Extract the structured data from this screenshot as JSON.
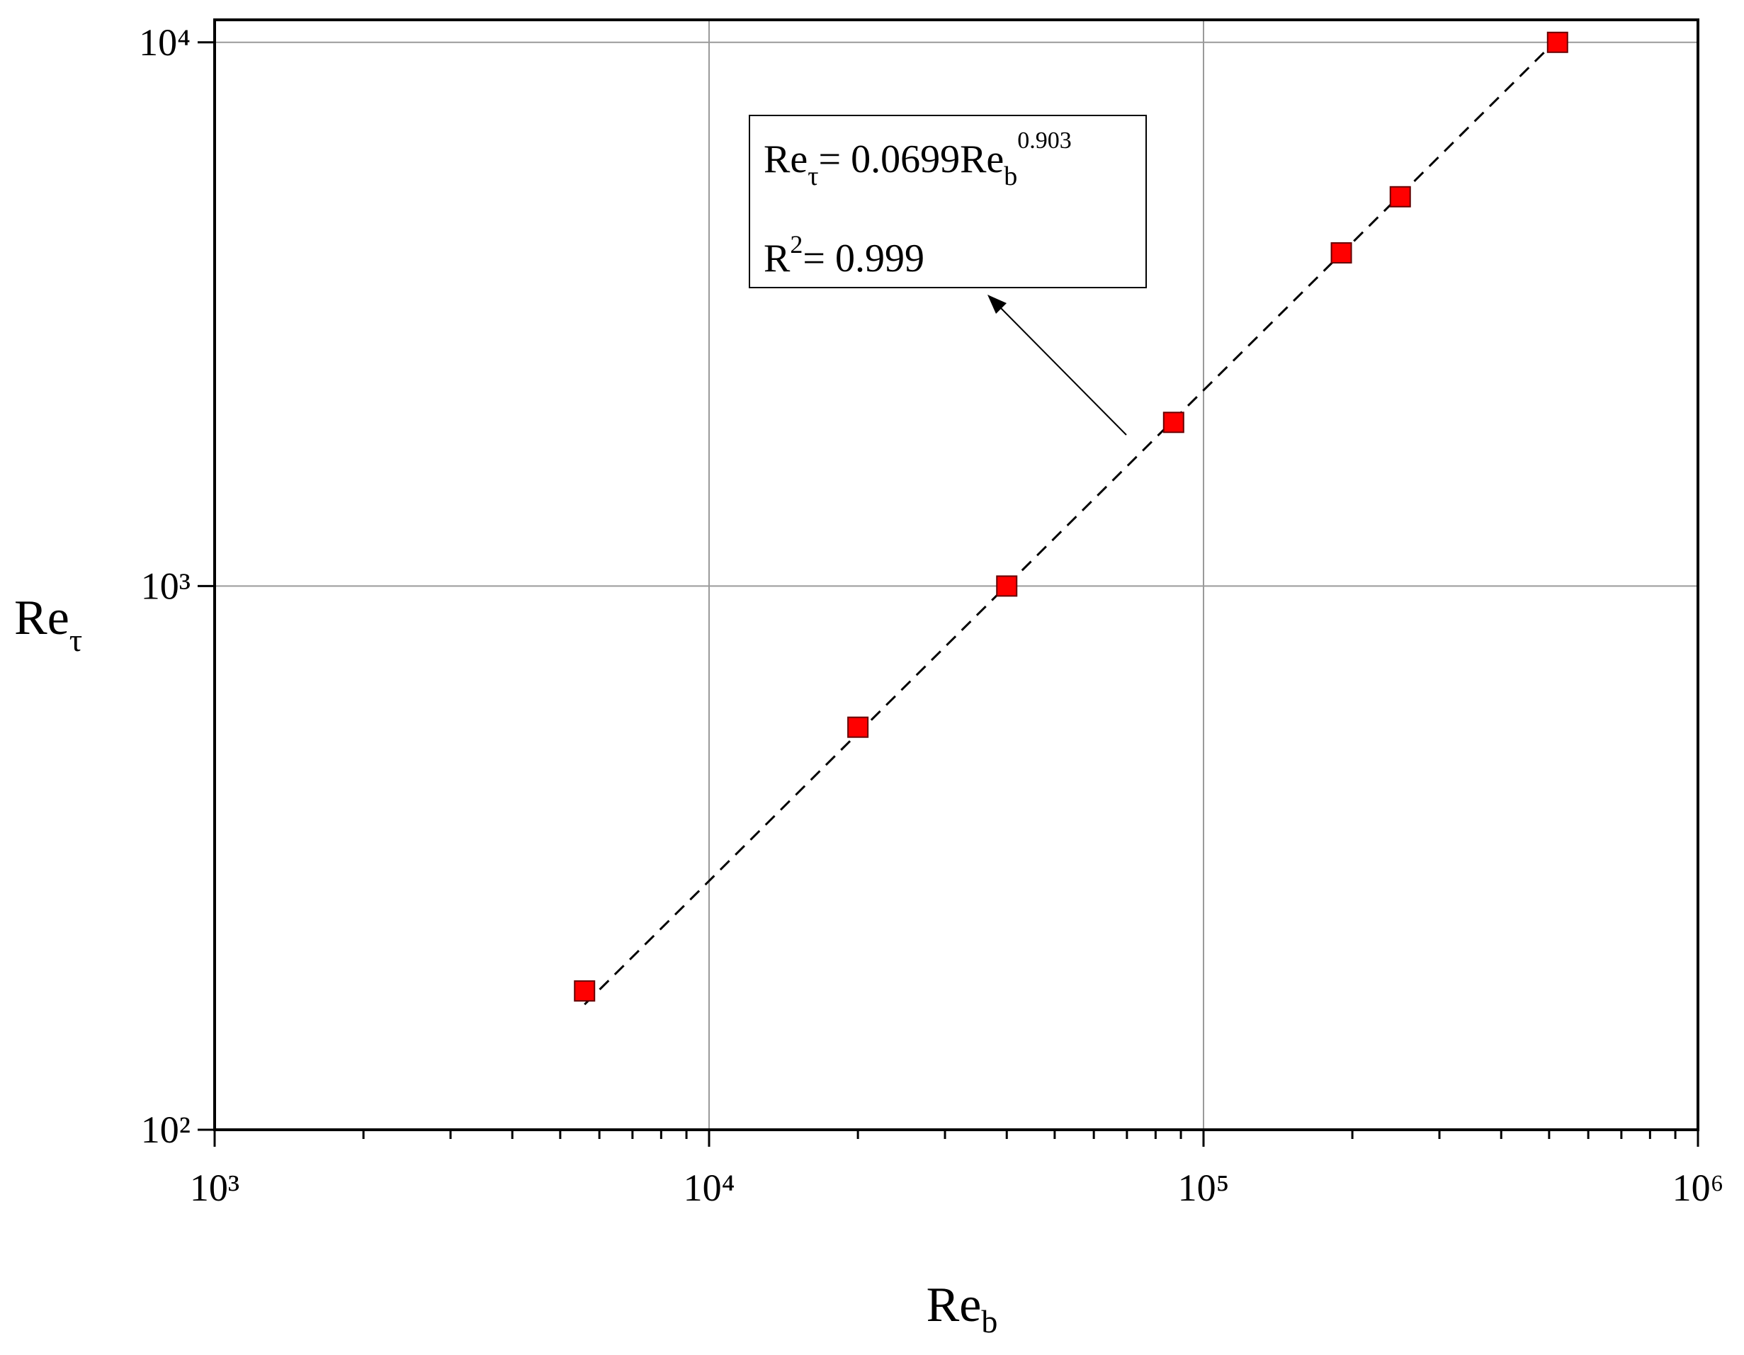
{
  "chart_data": {
    "type": "scatter",
    "x_label": {
      "text": "Re",
      "sub": "b"
    },
    "y_label": {
      "text": "Re",
      "sub": "τ"
    },
    "xscale": "log",
    "yscale": "log",
    "xlim": [
      1000,
      1000000
    ],
    "ylim": [
      100,
      11000
    ],
    "xticks": [
      {
        "value": 1000,
        "label": "10³"
      },
      {
        "value": 10000,
        "label": "10⁴"
      },
      {
        "value": 100000,
        "label": "10⁵"
      },
      {
        "value": 1000000,
        "label": "10⁶"
      }
    ],
    "xminorticks": [
      2000,
      3000,
      4000,
      5000,
      6000,
      7000,
      8000,
      9000,
      20000,
      30000,
      40000,
      50000,
      60000,
      70000,
      80000,
      90000,
      200000,
      300000,
      400000,
      500000,
      600000,
      700000,
      800000,
      900000
    ],
    "yticks": [
      {
        "value": 100,
        "label": "10²"
      },
      {
        "value": 1000,
        "label": "10³"
      },
      {
        "value": 10000,
        "label": "10⁴"
      }
    ],
    "grid": true,
    "series": [
      {
        "style": "marker",
        "color": "#ff0000",
        "x": [
          5600,
          20000,
          40000,
          87000,
          190000,
          250000,
          520000
        ],
        "values": [
          180,
          550,
          1000,
          2000,
          4100,
          5200,
          10000
        ]
      },
      {
        "style": "dashed",
        "color": "#000000",
        "x": [
          5600,
          520000
        ],
        "values": [
          170,
          10140
        ]
      }
    ],
    "annotation": {
      "equation": [
        "Re",
        "τ",
        "= 0.0699Re",
        "b",
        "0.903"
      ],
      "r_squared": [
        "R",
        "2",
        "= 0.999"
      ]
    }
  }
}
